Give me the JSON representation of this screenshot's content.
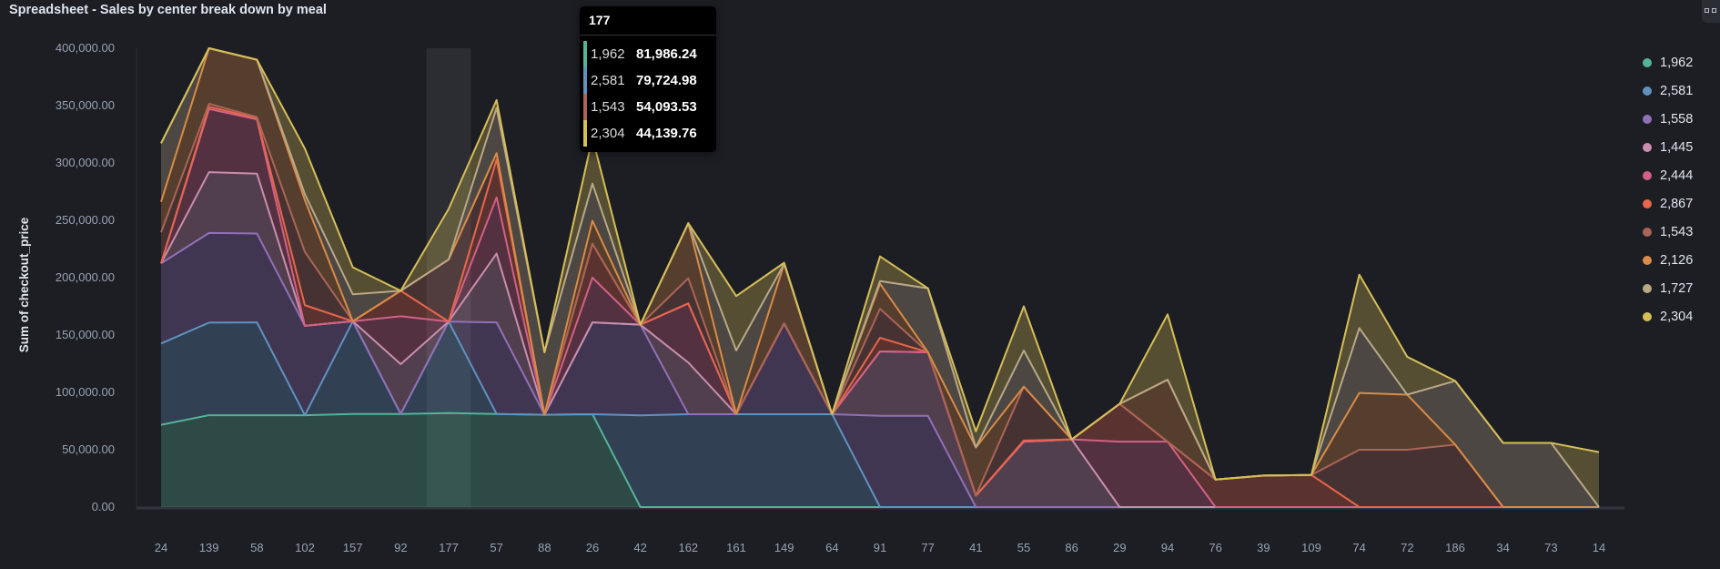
{
  "title": "Spreadsheet - Sales by center break down by meal",
  "chart_data": {
    "type": "area",
    "stacked": true,
    "title": "Spreadsheet - Sales by center break down by meal",
    "xlabel": "",
    "ylabel": "Sum of checkout_price",
    "ylim": [
      0,
      400000
    ],
    "yticks": [
      "0.00",
      "50,000.00",
      "100,000.00",
      "150,000.00",
      "200,000.00",
      "250,000.00",
      "300,000.00",
      "350,000.00",
      "400,000.00"
    ],
    "grid": false,
    "legend_position": "right",
    "categories": [
      "24",
      "139",
      "58",
      "102",
      "157",
      "92",
      "177",
      "57",
      "88",
      "26",
      "42",
      "162",
      "161",
      "149",
      "64",
      "91",
      "77",
      "41",
      "55",
      "86",
      "29",
      "94",
      "76",
      "39",
      "109",
      "74",
      "72",
      "186",
      "34",
      "73",
      "14"
    ],
    "series": [
      {
        "name": "1,962",
        "color": "#54b399",
        "values": [
          71700,
          80100,
          80100,
          80100,
          81200,
          81200,
          81986.24,
          81200,
          80500,
          81000,
          0,
          0,
          0,
          0,
          0,
          0,
          0,
          0,
          0,
          0,
          0,
          0,
          0,
          0,
          0,
          0,
          0,
          0,
          0,
          0,
          0
        ]
      },
      {
        "name": "2,581",
        "color": "#6092c0",
        "values": [
          70900,
          80700,
          80900,
          0,
          80800,
          0,
          79724.98,
          0,
          0,
          0,
          80000,
          81000,
          81000,
          81000,
          81000,
          0,
          0,
          0,
          0,
          0,
          0,
          0,
          0,
          0,
          0,
          0,
          0,
          0,
          0,
          0,
          0
        ]
      },
      {
        "name": "1,558",
        "color": "#9170b8",
        "values": [
          69900,
          78200,
          77500,
          77900,
          0,
          0,
          0,
          79800,
          0,
          80000,
          79000,
          0,
          0,
          79000,
          0,
          79600,
          79600,
          0,
          0,
          0,
          0,
          0,
          0,
          0,
          0,
          0,
          0,
          0,
          0,
          0,
          0
        ]
      },
      {
        "name": "1,445",
        "color": "#ca8eae",
        "values": [
          0,
          53000,
          52200,
          0,
          0,
          43400,
          0,
          60000,
          0,
          0,
          0,
          45000,
          0,
          0,
          0,
          56100,
          55400,
          10000,
          57000,
          59000,
          0,
          0,
          0,
          0,
          0,
          0,
          0,
          0,
          0,
          0,
          0
        ]
      },
      {
        "name": "2,444",
        "color": "#d36086",
        "values": [
          0,
          55000,
          47300,
          0,
          0,
          41800,
          0,
          49000,
          0,
          39000,
          0,
          51500,
          0,
          0,
          0,
          0,
          0,
          0,
          0,
          0,
          57000,
          57000,
          0,
          0,
          0,
          0,
          0,
          0,
          0,
          0,
          0
        ]
      },
      {
        "name": "2,867",
        "color": "#e7664c",
        "values": [
          0,
          2000,
          1000,
          18000,
          0,
          22200,
          0,
          33000,
          0,
          29600,
          0,
          0,
          0,
          0,
          0,
          11900,
          0,
          0,
          1000,
          0,
          33000,
          0,
          24000,
          27500,
          28000,
          0,
          0,
          0,
          0,
          0,
          0
        ]
      },
      {
        "name": "1,543",
        "color": "#aa6556",
        "values": [
          27000,
          2600,
          1000,
          46500,
          0,
          0,
          54093.53,
          5500,
          0,
          0,
          0,
          22000,
          0,
          0,
          0,
          25200,
          0,
          0,
          47000,
          0,
          0,
          0,
          0,
          0,
          0,
          50000,
          50000,
          54500,
          0,
          0,
          0
        ]
      },
      {
        "name": "2,126",
        "color": "#da8b45",
        "values": [
          26600,
          48400,
          50000,
          45100,
          0,
          0,
          0,
          0,
          0,
          20000,
          0,
          48000,
          0,
          52000,
          0,
          21900,
          0,
          42000,
          0,
          0,
          0,
          54000,
          0,
          0,
          0,
          49500,
          48000,
          0,
          0,
          0,
          0
        ]
      },
      {
        "name": "1,727",
        "color": "#b9a888",
        "values": [
          51100,
          0,
          0,
          5200,
          23500,
          0,
          0,
          39500,
          54500,
          32400,
          0,
          0,
          55500,
          0,
          0,
          2300,
          55700,
          0,
          31500,
          0,
          0,
          0,
          0,
          0,
          0,
          56500,
          0,
          55500,
          56000,
          56000,
          0
        ]
      },
      {
        "name": "2,304",
        "color": "#d6bf57",
        "values": [
          0,
          0,
          0,
          39700,
          23500,
          0,
          44139.76,
          6800,
          0,
          40000,
          0,
          0,
          47500,
          1000,
          0,
          21500,
          0,
          14000,
          38500,
          0,
          0,
          57000,
          0,
          0,
          0,
          46600,
          33000,
          0,
          0,
          0,
          47900
        ]
      }
    ],
    "highlighted_category": "177"
  },
  "tooltip": {
    "header": "177",
    "rows": [
      {
        "name": "1,962",
        "value": "81,986.24",
        "color": "#54b399"
      },
      {
        "name": "2,581",
        "value": "79,724.98",
        "color": "#6092c0"
      },
      {
        "name": "1,543",
        "value": "54,093.53",
        "color": "#aa6556"
      },
      {
        "name": "2,304",
        "value": "44,139.76",
        "color": "#d6bf57"
      }
    ]
  }
}
